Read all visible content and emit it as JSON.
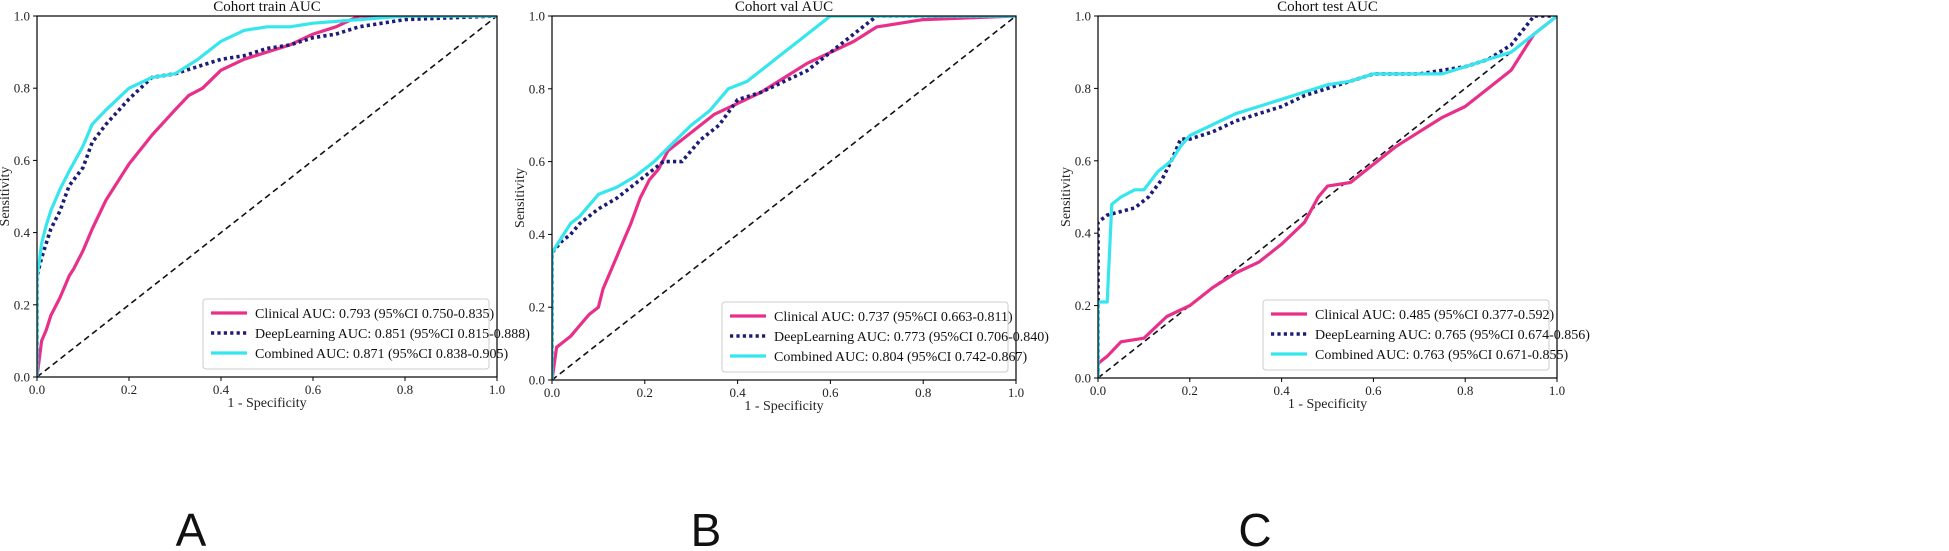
{
  "figure": {
    "panel_letters": [
      "A",
      "B",
      "C"
    ]
  },
  "colors": {
    "clinical": "#e8308a",
    "deeplearning": "#1c1c78",
    "combined": "#36e6ee",
    "diagonal": "#111111"
  },
  "chart_data": [
    {
      "type": "line",
      "title": "Cohort train AUC",
      "xlabel": "1 - Specificity",
      "ylabel": "Sensitivity",
      "xlim": [
        0,
        1
      ],
      "ylim": [
        0,
        1
      ],
      "xticks": [
        "0.0",
        "0.2",
        "0.4",
        "0.6",
        "0.8",
        "1.0"
      ],
      "yticks": [
        "0.0",
        "0.2",
        "0.4",
        "0.6",
        "0.8",
        "1.0"
      ],
      "legend_position": "lower-right",
      "series": [
        {
          "name": "Clinical AUC: 0.793 (95%CI 0.750-0.835)",
          "style": "solid",
          "color_key": "clinical",
          "x": [
            0,
            0.005,
            0.01,
            0.02,
            0.03,
            0.05,
            0.07,
            0.08,
            0.1,
            0.12,
            0.15,
            0.2,
            0.25,
            0.3,
            0.33,
            0.36,
            0.4,
            0.45,
            0.5,
            0.55,
            0.6,
            0.65,
            0.7,
            1.0
          ],
          "y": [
            0,
            0.05,
            0.1,
            0.13,
            0.17,
            0.22,
            0.28,
            0.3,
            0.35,
            0.41,
            0.49,
            0.59,
            0.67,
            0.74,
            0.78,
            0.8,
            0.85,
            0.88,
            0.9,
            0.92,
            0.95,
            0.97,
            1.0,
            1.0
          ]
        },
        {
          "name": "DeepLearning AUC: 0.851 (95%CI 0.815-0.888)",
          "style": "dotted",
          "color_key": "deeplearning",
          "x": [
            0,
            0,
            0.01,
            0.02,
            0.03,
            0.05,
            0.07,
            0.1,
            0.12,
            0.15,
            0.2,
            0.25,
            0.3,
            0.35,
            0.4,
            0.45,
            0.5,
            0.55,
            0.6,
            0.65,
            0.7,
            0.75,
            0.8,
            0.9,
            1.0
          ],
          "y": [
            0,
            0.28,
            0.33,
            0.37,
            0.41,
            0.46,
            0.53,
            0.58,
            0.65,
            0.7,
            0.77,
            0.83,
            0.84,
            0.86,
            0.88,
            0.89,
            0.91,
            0.92,
            0.94,
            0.95,
            0.97,
            0.98,
            0.99,
            0.995,
            1.0
          ]
        },
        {
          "name": "Combined AUC: 0.871 (95%CI 0.838-0.905)",
          "style": "solid",
          "color_key": "combined",
          "x": [
            0,
            0,
            0.005,
            0.01,
            0.02,
            0.03,
            0.05,
            0.07,
            0.1,
            0.12,
            0.15,
            0.2,
            0.25,
            0.3,
            0.35,
            0.4,
            0.45,
            0.5,
            0.55,
            0.6,
            0.7,
            0.8,
            1.0
          ],
          "y": [
            0,
            0.28,
            0.32,
            0.37,
            0.42,
            0.46,
            0.52,
            0.57,
            0.64,
            0.7,
            0.74,
            0.8,
            0.83,
            0.84,
            0.88,
            0.93,
            0.96,
            0.97,
            0.97,
            0.98,
            0.99,
            1.0,
            1.0
          ]
        }
      ],
      "reference_line": {
        "x": [
          0,
          1
        ],
        "y": [
          0,
          1
        ],
        "style": "dashed"
      }
    },
    {
      "type": "line",
      "title": "Cohort val AUC",
      "xlabel": "1 - Specificity",
      "ylabel": "Sensitivity",
      "xlim": [
        0,
        1
      ],
      "ylim": [
        0,
        1
      ],
      "xticks": [
        "0.0",
        "0.2",
        "0.4",
        "0.6",
        "0.8",
        "1.0"
      ],
      "yticks": [
        "0.0",
        "0.2",
        "0.4",
        "0.6",
        "0.8",
        "1.0"
      ],
      "legend_position": "lower-right",
      "series": [
        {
          "name": "Clinical AUC: 0.737 (95%CI 0.663-0.811)",
          "style": "solid",
          "color_key": "clinical",
          "x": [
            0,
            0.01,
            0.02,
            0.04,
            0.06,
            0.08,
            0.1,
            0.11,
            0.13,
            0.15,
            0.17,
            0.19,
            0.21,
            0.23,
            0.25,
            0.3,
            0.35,
            0.4,
            0.45,
            0.5,
            0.55,
            0.6,
            0.65,
            0.7,
            0.8,
            1.0
          ],
          "y": [
            0,
            0.09,
            0.1,
            0.12,
            0.15,
            0.18,
            0.2,
            0.25,
            0.31,
            0.37,
            0.43,
            0.5,
            0.55,
            0.58,
            0.63,
            0.68,
            0.73,
            0.76,
            0.79,
            0.83,
            0.87,
            0.9,
            0.93,
            0.97,
            0.99,
            1.0
          ]
        },
        {
          "name": "DeepLearning AUC: 0.773 (95%CI 0.706-0.840)",
          "style": "dotted",
          "color_key": "deeplearning",
          "x": [
            0,
            0,
            0.02,
            0.04,
            0.06,
            0.08,
            0.1,
            0.14,
            0.17,
            0.2,
            0.24,
            0.28,
            0.32,
            0.36,
            0.4,
            0.45,
            0.5,
            0.55,
            0.6,
            0.65,
            0.7,
            0.8,
            1.0
          ],
          "y": [
            0,
            0.35,
            0.38,
            0.4,
            0.43,
            0.45,
            0.47,
            0.5,
            0.53,
            0.56,
            0.6,
            0.6,
            0.66,
            0.7,
            0.77,
            0.79,
            0.82,
            0.85,
            0.9,
            0.95,
            1.0,
            1.0,
            1.0
          ]
        },
        {
          "name": "Combined AUC: 0.804 (95%CI 0.742-0.867)",
          "style": "solid",
          "color_key": "combined",
          "x": [
            0,
            0,
            0.02,
            0.04,
            0.06,
            0.08,
            0.1,
            0.14,
            0.18,
            0.22,
            0.26,
            0.3,
            0.34,
            0.38,
            0.42,
            0.46,
            0.5,
            0.55,
            0.6,
            0.65,
            0.7,
            0.8,
            1.0
          ],
          "y": [
            0,
            0.35,
            0.39,
            0.43,
            0.45,
            0.48,
            0.51,
            0.53,
            0.56,
            0.6,
            0.65,
            0.7,
            0.74,
            0.8,
            0.82,
            0.86,
            0.9,
            0.95,
            1.0,
            1.0,
            1.0,
            1.0,
            1.0
          ]
        }
      ],
      "reference_line": {
        "x": [
          0,
          1
        ],
        "y": [
          0,
          1
        ],
        "style": "dashed"
      }
    },
    {
      "type": "line",
      "title": "Cohort test AUC",
      "xlabel": "1 - Specificity",
      "ylabel": "Sensitivity",
      "xlim": [
        0,
        1
      ],
      "ylim": [
        0,
        1
      ],
      "xticks": [
        "0.0",
        "0.2",
        "0.4",
        "0.6",
        "0.8",
        "1.0"
      ],
      "yticks": [
        "0.0",
        "0.2",
        "0.4",
        "0.6",
        "0.8",
        "1.0"
      ],
      "legend_position": "lower-right",
      "series": [
        {
          "name": "Clinical AUC: 0.485 (95%CI 0.377-0.592)",
          "style": "solid",
          "color_key": "clinical",
          "x": [
            0,
            0,
            0.02,
            0.05,
            0.1,
            0.15,
            0.2,
            0.25,
            0.3,
            0.35,
            0.4,
            0.45,
            0.48,
            0.5,
            0.55,
            0.6,
            0.65,
            0.7,
            0.75,
            0.8,
            0.85,
            0.9,
            0.95,
            1.0
          ],
          "y": [
            0,
            0.04,
            0.06,
            0.1,
            0.11,
            0.17,
            0.2,
            0.25,
            0.29,
            0.32,
            0.37,
            0.43,
            0.5,
            0.53,
            0.54,
            0.59,
            0.64,
            0.68,
            0.72,
            0.75,
            0.8,
            0.85,
            0.95,
            1.0
          ]
        },
        {
          "name": "DeepLearning AUC: 0.765 (95%CI 0.674-0.856)",
          "style": "dotted",
          "color_key": "deeplearning",
          "x": [
            0,
            0,
            0.02,
            0.05,
            0.08,
            0.11,
            0.14,
            0.16,
            0.18,
            0.2,
            0.25,
            0.3,
            0.35,
            0.4,
            0.45,
            0.5,
            0.55,
            0.6,
            0.65,
            0.7,
            0.75,
            0.8,
            0.85,
            0.9,
            0.95,
            1.0
          ],
          "y": [
            0,
            0.43,
            0.45,
            0.46,
            0.47,
            0.5,
            0.55,
            0.6,
            0.66,
            0.66,
            0.68,
            0.71,
            0.73,
            0.75,
            0.78,
            0.8,
            0.82,
            0.84,
            0.84,
            0.84,
            0.85,
            0.86,
            0.88,
            0.92,
            1.0,
            1.0
          ]
        },
        {
          "name": "Combined AUC: 0.763 (95%CI 0.671-0.855)",
          "style": "solid",
          "color_key": "combined",
          "x": [
            0,
            0,
            0.02,
            0.03,
            0.05,
            0.08,
            0.1,
            0.13,
            0.16,
            0.18,
            0.2,
            0.25,
            0.3,
            0.35,
            0.4,
            0.45,
            0.5,
            0.55,
            0.6,
            0.65,
            0.7,
            0.75,
            0.8,
            0.85,
            0.9,
            0.95,
            1.0
          ],
          "y": [
            0,
            0.21,
            0.21,
            0.48,
            0.5,
            0.52,
            0.52,
            0.57,
            0.6,
            0.64,
            0.67,
            0.7,
            0.73,
            0.75,
            0.77,
            0.79,
            0.81,
            0.82,
            0.84,
            0.84,
            0.84,
            0.84,
            0.86,
            0.88,
            0.9,
            0.95,
            1.0
          ]
        }
      ],
      "reference_line": {
        "x": [
          0,
          1
        ],
        "y": [
          0,
          1
        ],
        "style": "dashed"
      }
    }
  ]
}
